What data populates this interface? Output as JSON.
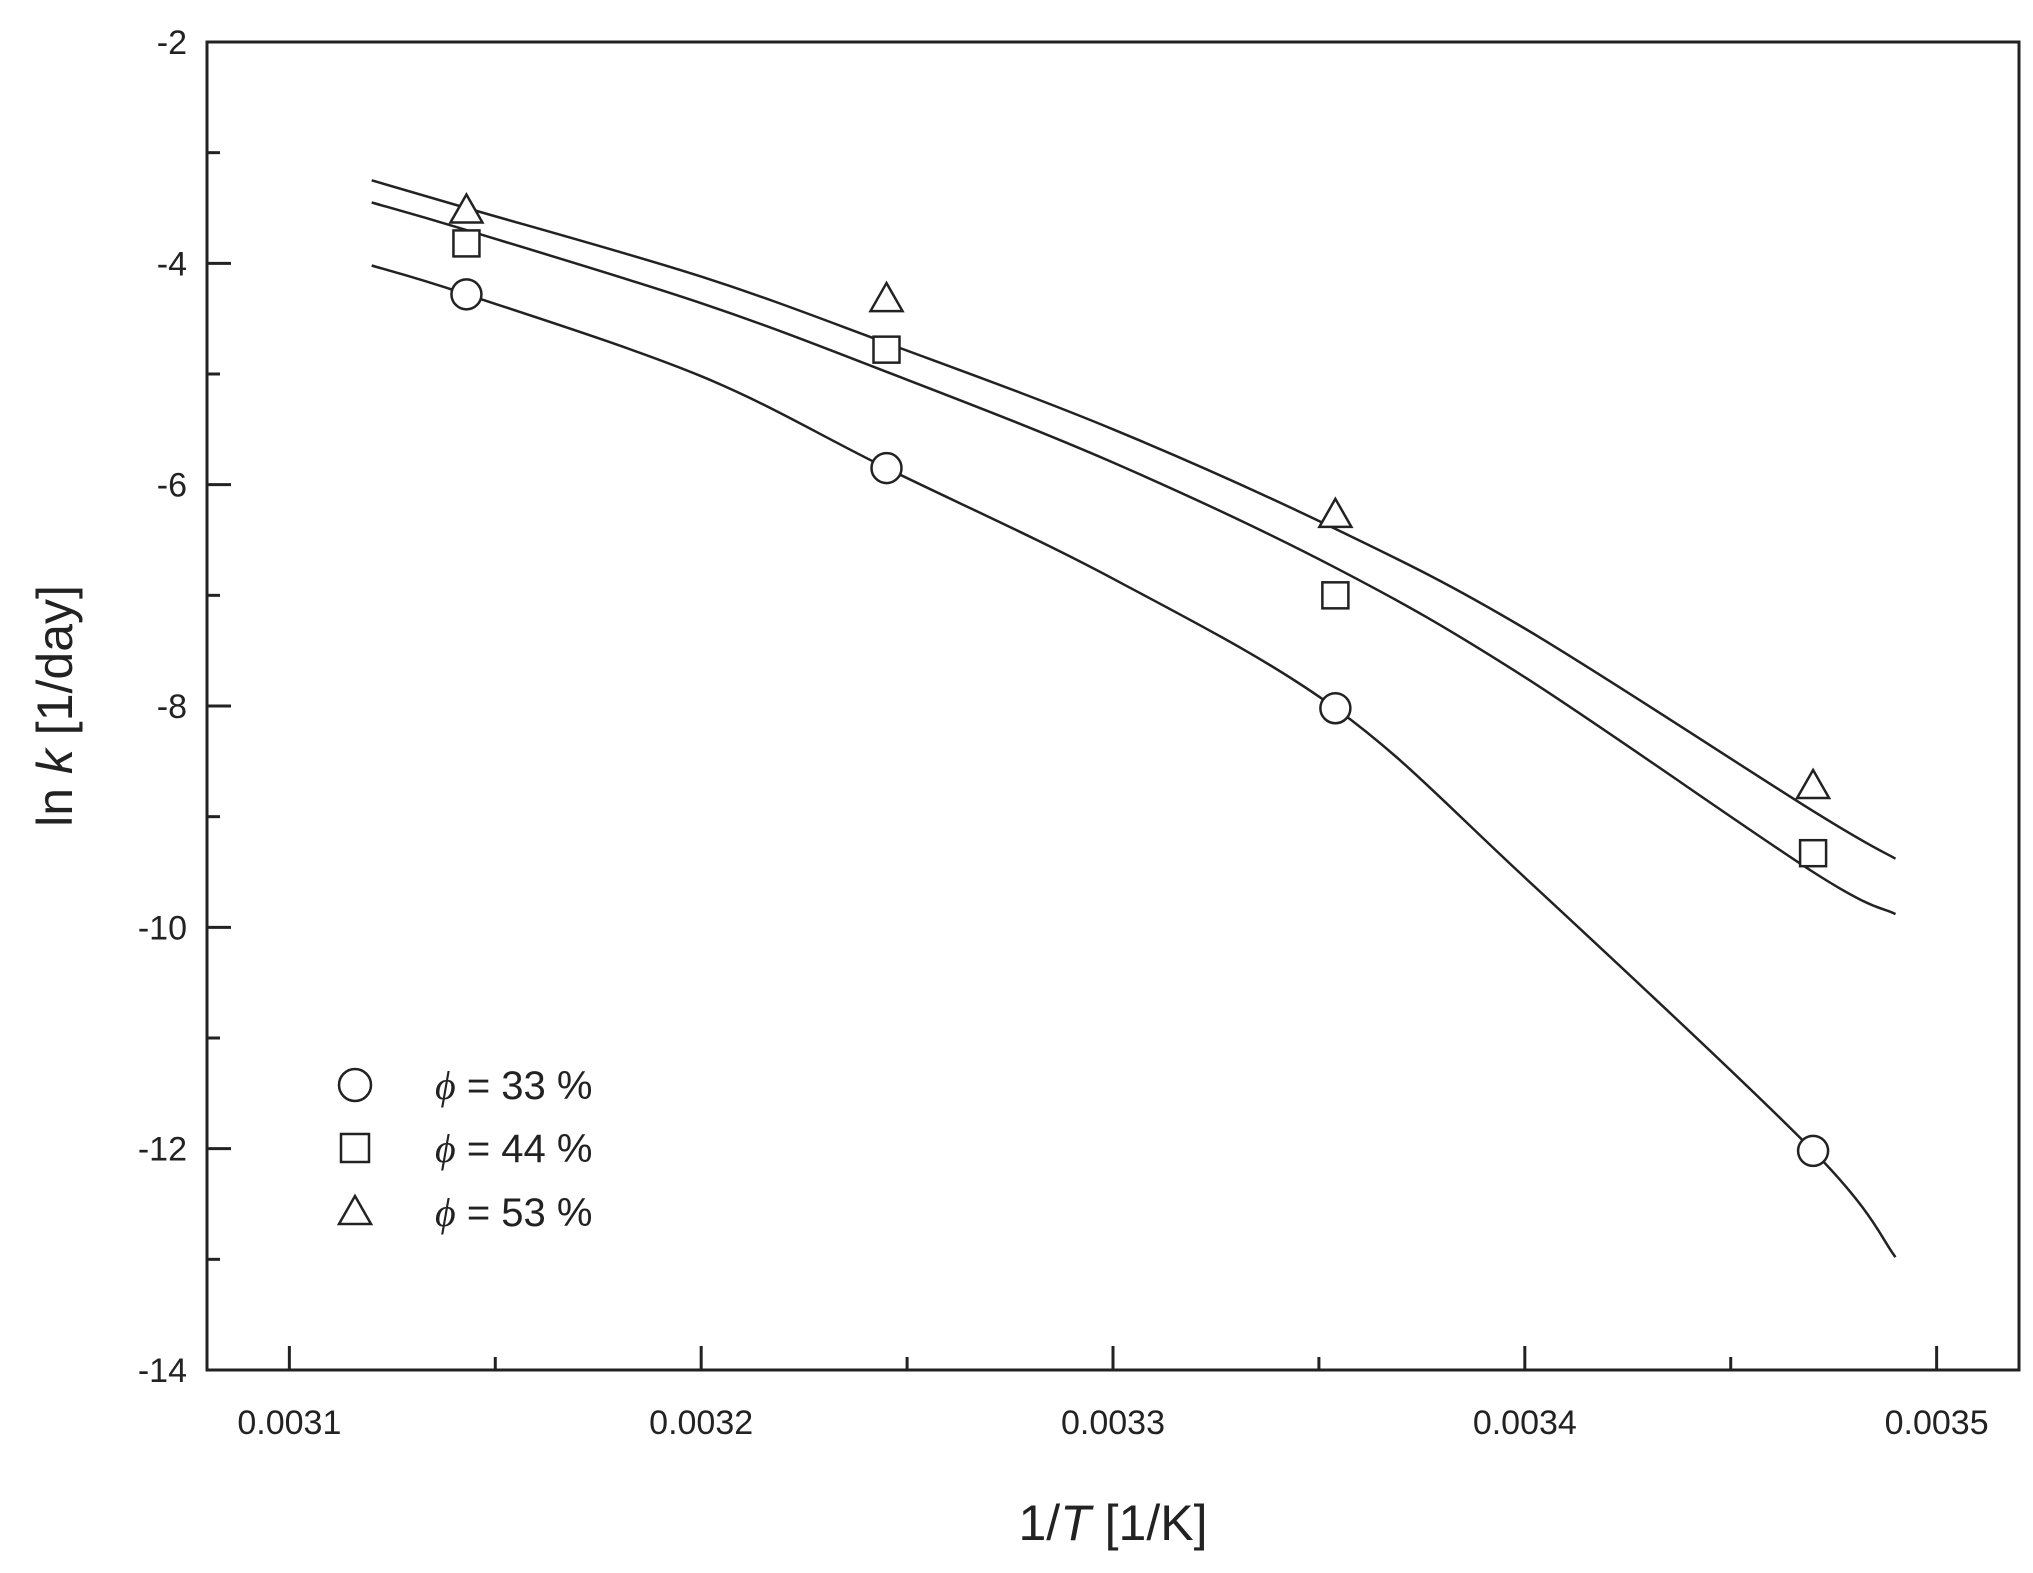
{
  "chart_data": {
    "type": "scatter",
    "xlabel": {
      "prefix": "1/",
      "italic": "T",
      "suffix": " [1/K]"
    },
    "ylabel": {
      "prefix": "ln ",
      "italic": "k",
      "suffix": "  [1/day]"
    },
    "xlim": [
      0.00308,
      0.00352
    ],
    "ylim": [
      -14,
      -2
    ],
    "x_ticks": [
      0.0031,
      0.0032,
      0.0033,
      0.0034,
      0.0035
    ],
    "x_tick_labels": [
      "0.0031",
      "0.0032",
      "0.0033",
      "0.0034",
      "0.0035"
    ],
    "y_ticks": [
      -14,
      -12,
      -10,
      -8,
      -6,
      -4,
      -2
    ],
    "y_tick_labels": [
      "-14",
      "-12",
      "-10",
      "-8",
      "-6",
      "-4",
      "-2"
    ],
    "grid": false,
    "legend_position": "bottom-left",
    "series": [
      {
        "name": "ϕ = 33 %",
        "legend_symbol": "ϕ",
        "legend_text": " = 33 %",
        "marker": "circle",
        "x": [
          0.003143,
          0.003245,
          0.003354,
          0.00347
        ],
        "y": [
          -4.28,
          -5.85,
          -8.02,
          -12.02
        ],
        "fit": {
          "x": [
            0.00312,
            0.003143,
            0.0032,
            0.003245,
            0.0033,
            0.003354,
            0.0034,
            0.00347,
            0.00349
          ],
          "y": [
            -4.02,
            -4.28,
            -5.02,
            -5.85,
            -6.85,
            -8.02,
            -9.55,
            -12.02,
            -12.98
          ]
        }
      },
      {
        "name": "ϕ = 44 %",
        "legend_symbol": "ϕ",
        "legend_text": " = 44 %",
        "marker": "square",
        "x": [
          0.003143,
          0.003245,
          0.003354,
          0.00347
        ],
        "y": [
          -3.82,
          -4.78,
          -7.0,
          -9.33
        ],
        "fit": {
          "x": [
            0.00312,
            0.003143,
            0.0032,
            0.003245,
            0.0033,
            0.003354,
            0.0034,
            0.00347,
            0.00349
          ],
          "y": [
            -3.45,
            -3.7,
            -4.36,
            -4.98,
            -5.8,
            -6.75,
            -7.74,
            -9.5,
            -9.88
          ]
        }
      },
      {
        "name": "ϕ = 53 %",
        "legend_symbol": "ϕ",
        "legend_text": " = 53 %",
        "marker": "triangle",
        "x": [
          0.003143,
          0.003245,
          0.003354,
          0.00347
        ],
        "y": [
          -3.55,
          -4.35,
          -6.3,
          -8.75
        ],
        "fit": {
          "x": [
            0.00312,
            0.003143,
            0.0032,
            0.003245,
            0.0033,
            0.003354,
            0.0034,
            0.00347,
            0.00349
          ],
          "y": [
            -3.25,
            -3.5,
            -4.12,
            -4.72,
            -5.5,
            -6.4,
            -7.3,
            -8.95,
            -9.38
          ]
        }
      }
    ]
  }
}
